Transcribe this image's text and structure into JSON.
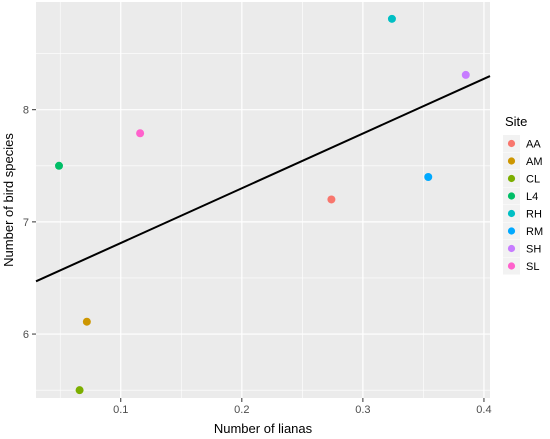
{
  "chart_data": {
    "type": "scatter",
    "title": "",
    "xlabel": "Number of lianas",
    "ylabel": "Number of bird species",
    "xlim": [
      0.03,
      0.405
    ],
    "ylim": [
      5.43,
      8.96
    ],
    "x_ticks": [
      {
        "value": 0.1,
        "label": "0.1"
      },
      {
        "value": 0.2,
        "label": "0.2"
      },
      {
        "value": 0.3,
        "label": "0.3"
      },
      {
        "value": 0.4,
        "label": "0.4"
      }
    ],
    "y_ticks": [
      {
        "value": 6,
        "label": "6"
      },
      {
        "value": 7,
        "label": "7"
      },
      {
        "value": 8,
        "label": "8"
      }
    ],
    "grid": true,
    "background": "#ebebeb",
    "grid_color": "#ffffff",
    "legend": {
      "title": "Site",
      "placement": "right"
    },
    "series": [
      {
        "name": "AA",
        "color": "#f8766d",
        "x": 0.274,
        "y": 7.2
      },
      {
        "name": "AM",
        "color": "#cd9600",
        "x": 0.072,
        "y": 6.11
      },
      {
        "name": "CL",
        "color": "#7cae00",
        "x": 0.066,
        "y": 5.5
      },
      {
        "name": "L4",
        "color": "#00be67",
        "x": 0.049,
        "y": 7.5
      },
      {
        "name": "RH",
        "color": "#00bfc4",
        "x": 0.324,
        "y": 8.81
      },
      {
        "name": "RM",
        "color": "#00a9ff",
        "x": 0.354,
        "y": 7.4
      },
      {
        "name": "SH",
        "color": "#c77cff",
        "x": 0.385,
        "y": 8.31
      },
      {
        "name": "SL",
        "color": "#ff61cc",
        "x": 0.116,
        "y": 7.79
      }
    ],
    "trendline": {
      "color": "#000000",
      "x_start": 0.03,
      "y_start": 6.47,
      "x_end": 0.405,
      "y_end": 8.3
    }
  }
}
